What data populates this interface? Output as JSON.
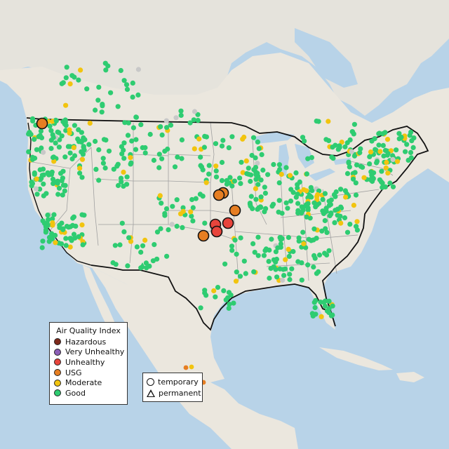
{
  "legend": {
    "title": "Air Quality Index",
    "items": [
      {
        "label": "Hazardous",
        "color": "#7e2a1b"
      },
      {
        "label": "Very Unhealthy",
        "color": "#8c5fb7"
      },
      {
        "label": "Unhealthy",
        "color": "#e8453c"
      },
      {
        "label": "USG",
        "color": "#e67e22"
      },
      {
        "label": "Moderate",
        "color": "#f2c40f"
      },
      {
        "label": "Good",
        "color": "#2ecc71"
      }
    ]
  },
  "type_legend": {
    "items": [
      {
        "label": "temporary",
        "shape": "circle-icon"
      },
      {
        "label": "permanent",
        "shape": "triangle-icon"
      }
    ]
  },
  "colors": {
    "ocean": "#b8d3e8",
    "land": "#ece8e0",
    "us_land": "#e9e4da",
    "border": "#111111",
    "state_line": "#a0a0a0",
    "no_data": "#c8c8c8"
  }
}
